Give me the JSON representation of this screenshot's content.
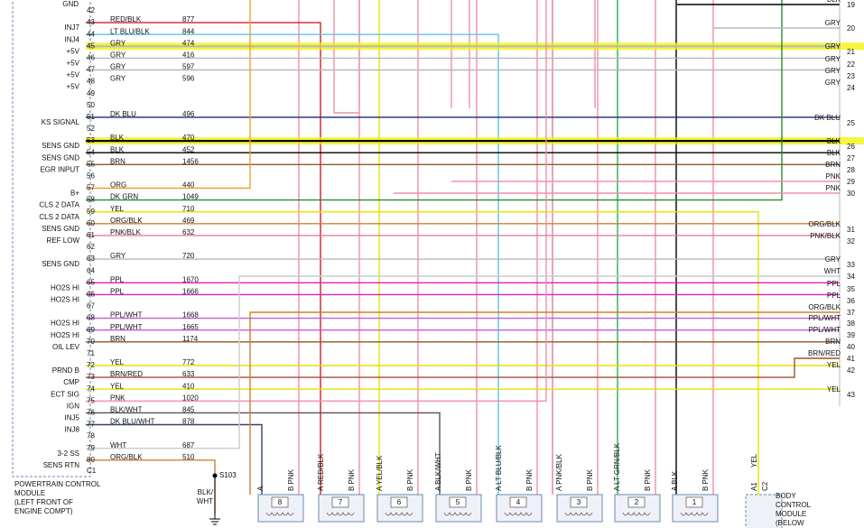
{
  "pcm": {
    "top_function": "GND",
    "name_lines": [
      "POWERTRAIN CONTROL",
      "MODULE",
      "(LEFT FRONT OF",
      "ENGINE COMPT)"
    ],
    "connector": "C1",
    "pins": [
      {
        "pin": "42"
      },
      {
        "pin": "43",
        "function": "INJ7",
        "wire": "RED/BLK",
        "circuit": "877",
        "line": "#d02020"
      },
      {
        "pin": "44",
        "function": "INJ4",
        "wire": "LT BLU/BLK",
        "circuit": "844",
        "line": "#5cc8d8"
      },
      {
        "pin": "45",
        "function": "+5V",
        "wire": "GRY",
        "circuit": "474",
        "line": "#b8b8b8",
        "highlight": true
      },
      {
        "pin": "46",
        "function": "+5V",
        "wire": "GRY",
        "circuit": "416",
        "line": "#b8b8b8"
      },
      {
        "pin": "47",
        "function": "+5V",
        "wire": "GRY",
        "circuit": "597",
        "line": "#b8b8b8"
      },
      {
        "pin": "48",
        "function": "+5V",
        "wire": "GRY",
        "circuit": "596",
        "line": "#b8b8b8"
      },
      {
        "pin": "49"
      },
      {
        "pin": "50"
      },
      {
        "pin": "51",
        "function": "KS SIGNAL",
        "wire": "DK BLU",
        "circuit": "496",
        "line": "#1a2a6c"
      },
      {
        "pin": "52"
      },
      {
        "pin": "53",
        "function": "SENS GND",
        "wire": "BLK",
        "circuit": "470",
        "line": "#000000",
        "highlight": true
      },
      {
        "pin": "54",
        "function": "SENS GND",
        "wire": "BLK",
        "circuit": "452",
        "line": "#000000"
      },
      {
        "pin": "55",
        "function": "EGR INPUT",
        "wire": "BRN",
        "circuit": "1456",
        "line": "#8b5a2b"
      },
      {
        "pin": "56"
      },
      {
        "pin": "57",
        "function": "B+",
        "wire": "ORG",
        "circuit": "440",
        "line": "#f0a030"
      },
      {
        "pin": "58",
        "function": "CLS 2 DATA",
        "wire": "DK GRN",
        "circuit": "1049",
        "line": "#2a8a2a"
      },
      {
        "pin": "59",
        "function": "CLS 2 DATA",
        "wire": "YEL",
        "circuit": "710",
        "line": "#e8e000"
      },
      {
        "pin": "60",
        "function": "SENS GND",
        "wire": "ORG/BLK",
        "circuit": "469",
        "line": "#d08030"
      },
      {
        "pin": "61",
        "function": "REF LOW",
        "wire": "PNK/BLK",
        "circuit": "632",
        "line": "#e080a0"
      },
      {
        "pin": "62"
      },
      {
        "pin": "63",
        "function": "SENS GND",
        "wire": "GRY",
        "circuit": "720",
        "line": "#b8b8b8"
      },
      {
        "pin": "64"
      },
      {
        "pin": "65",
        "function": "HO2S HI",
        "wire": "PPL",
        "circuit": "1670",
        "line": "#e020c0"
      },
      {
        "pin": "66",
        "function": "HO2S HI",
        "wire": "PPL",
        "circuit": "1666",
        "line": "#e020c0"
      },
      {
        "pin": "67"
      },
      {
        "pin": "68",
        "function": "HO2S HI",
        "wire": "PPL/WHT",
        "circuit": "1668",
        "line": "#c060d0"
      },
      {
        "pin": "69",
        "function": "HO2S HI",
        "wire": "PPL/WHT",
        "circuit": "1665",
        "line": "#c060d0"
      },
      {
        "pin": "70",
        "function": "OIL LEV",
        "wire": "BRN",
        "circuit": "1174",
        "line": "#8b5a2b"
      },
      {
        "pin": "71"
      },
      {
        "pin": "72",
        "function": "PRND B",
        "wire": "YEL",
        "circuit": "772",
        "line": "#e8e000"
      },
      {
        "pin": "73",
        "function": "CMP",
        "wire": "BRN/RED",
        "circuit": "633",
        "line": "#a0522d"
      },
      {
        "pin": "74",
        "function": "ECT SIG",
        "wire": "YEL",
        "circuit": "410",
        "line": "#e8e000"
      },
      {
        "pin": "75",
        "function": "IGN",
        "wire": "PNK",
        "circuit": "1020",
        "line": "#f090a8"
      },
      {
        "pin": "76",
        "function": "INJ5",
        "wire": "BLK/WHT",
        "circuit": "845",
        "line": "#555555"
      },
      {
        "pin": "77",
        "function": "INJ8",
        "wire": "DK BLU/WHT",
        "circuit": "878",
        "line": "#334466"
      },
      {
        "pin": "78"
      },
      {
        "pin": "79",
        "function": "3-2 SS",
        "wire": "WHT",
        "circuit": "687",
        "line": "#cccccc"
      },
      {
        "pin": "80",
        "function": "SENS RTN",
        "wire": "ORG/BLK",
        "circuit": "510",
        "line": "#d08030"
      }
    ]
  },
  "right_pins": [
    {
      "pin": "19",
      "wire": "BLK"
    },
    {
      "pin": "20",
      "wire": "GRY"
    },
    {
      "pin": "21",
      "wire": "GRY"
    },
    {
      "pin": "22",
      "wire": "GRY"
    },
    {
      "pin": "23",
      "wire": "GRY"
    },
    {
      "pin": "24",
      "wire": "GRY"
    },
    {
      "pin": "25",
      "wire": "DK BLU"
    },
    {
      "pin": "26",
      "wire": "BLK"
    },
    {
      "pin": "27",
      "wire": "BLK"
    },
    {
      "pin": "28",
      "wire": "BRN"
    },
    {
      "pin": "29",
      "wire": "PNK"
    },
    {
      "pin": "30",
      "wire": "PNK"
    },
    {
      "pin": "31",
      "wire": "ORG/BLK"
    },
    {
      "pin": "32",
      "wire": "PNK/BLK"
    },
    {
      "pin": "33",
      "wire": "GRY"
    },
    {
      "pin": "34",
      "wire": "WHT"
    },
    {
      "pin": "35",
      "wire": "PPL"
    },
    {
      "pin": "36",
      "wire": "PPL"
    },
    {
      "pin": "37",
      "wire": "ORG/BLK"
    },
    {
      "pin": "38",
      "wire": "PPL/WHT"
    },
    {
      "pin": "39",
      "wire": "PPL/WHT"
    },
    {
      "pin": "40",
      "wire": "BRN"
    },
    {
      "pin": "41",
      "wire": "BRN/RED"
    },
    {
      "pin": "42",
      "wire": "YEL"
    },
    {
      "pin": "43",
      "wire": "YEL"
    }
  ],
  "injectors": [
    {
      "number": "8",
      "pin_a": "A",
      "pin_b": "B PNK"
    },
    {
      "number": "7",
      "pin_a": "A RED/BLK",
      "pin_b": "B PNK"
    },
    {
      "number": "6",
      "pin_a": "A YEL/BLK",
      "pin_b": "B PNK"
    },
    {
      "number": "5",
      "pin_a": "A BLK/WHT",
      "pin_b": "B PNK"
    },
    {
      "number": "4",
      "pin_a": "A LT BLU/BLK",
      "pin_b": "B PNK"
    },
    {
      "number": "3",
      "pin_a": "A PNK/BLK",
      "pin_b": "B PNK"
    },
    {
      "number": "2",
      "pin_a": "A LT GRN/BLK",
      "pin_b": "B PNK"
    },
    {
      "number": "1",
      "pin_a": "A BLK",
      "pin_b": "B PNK"
    }
  ],
  "splice": {
    "name": "S103",
    "wire_lines": [
      "BLK/",
      "WHT"
    ]
  },
  "bcm": {
    "pin": "A1",
    "connector": "C2",
    "wire": "YEL",
    "name_lines": [
      "BODY",
      "CONTROL",
      "MODULE",
      "(BELOW"
    ]
  }
}
